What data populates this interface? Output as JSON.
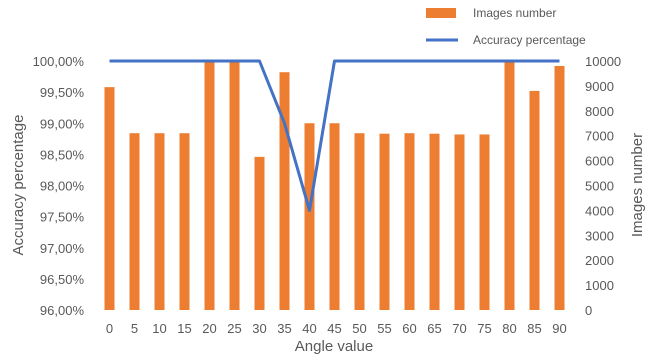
{
  "chart_data": {
    "type": "bar",
    "title": "",
    "xlabel": "Angle value",
    "ylabel_left": "Accuracy percentage",
    "ylabel_right": "Images number",
    "categories": [
      "0",
      "5",
      "10",
      "15",
      "20",
      "25",
      "30",
      "35",
      "40",
      "45",
      "50",
      "55",
      "60",
      "65",
      "70",
      "75",
      "80",
      "85",
      "90"
    ],
    "left_ticks": [
      "96,00%",
      "96,50%",
      "97,00%",
      "97,50%",
      "98,00%",
      "98,50%",
      "99,00%",
      "99,50%",
      "100,00%"
    ],
    "right_ticks": [
      "0",
      "1000",
      "2000",
      "3000",
      "4000",
      "5000",
      "6000",
      "7000",
      "8000",
      "9000",
      "10000"
    ],
    "ylim_left": [
      96.0,
      100.0
    ],
    "ylim_right": [
      0,
      10000
    ],
    "grid": false,
    "legend_position": "top-right",
    "series": [
      {
        "name": "Images number",
        "kind": "bar",
        "axis": "right",
        "color": "#ED7D31",
        "values": [
          8950,
          7100,
          7100,
          7100,
          10000,
          10000,
          6150,
          9550,
          7500,
          7500,
          7100,
          7080,
          7100,
          7080,
          7050,
          7050,
          10000,
          8800,
          9800
        ]
      },
      {
        "name": "Accuracy percentage",
        "kind": "line",
        "axis": "left",
        "color": "#4472C4",
        "values": [
          100,
          100,
          100,
          100,
          100,
          100,
          100,
          99.0,
          97.6,
          100,
          100,
          100,
          100,
          100,
          100,
          100,
          100,
          100,
          100
        ]
      }
    ]
  }
}
